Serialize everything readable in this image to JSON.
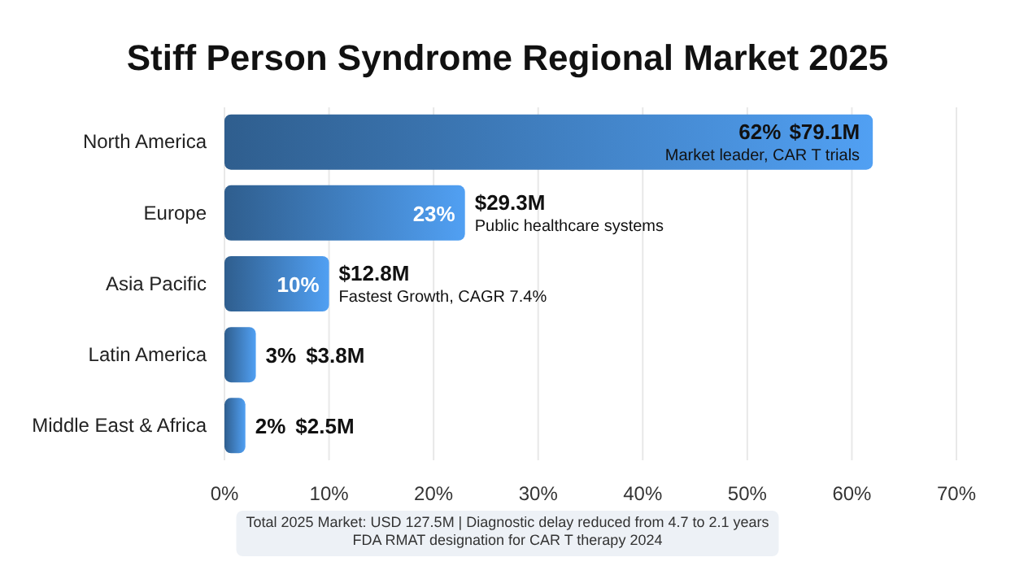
{
  "chart_data": {
    "type": "bar",
    "orientation": "horizontal",
    "title": "Stiff Person Syndrome Regional Market 2025",
    "categories": [
      "North America",
      "Europe",
      "Asia Pacific",
      "Latin America",
      "Middle East & Africa"
    ],
    "values": [
      62,
      23,
      10,
      3,
      2
    ],
    "value_labels": [
      "62%",
      "23%",
      "10%",
      "3%",
      "2%"
    ],
    "color": "#3f7dbd",
    "xlim": [
      0,
      70
    ],
    "xticks": [
      {
        "value": 0,
        "label": "0%"
      },
      {
        "value": 10,
        "label": "10%"
      },
      {
        "value": 20,
        "label": "20%"
      },
      {
        "value": 30,
        "label": "30%"
      },
      {
        "value": 40,
        "label": "40%"
      },
      {
        "value": 50,
        "label": "50%"
      },
      {
        "value": 60,
        "label": "60%"
      },
      {
        "value": 70,
        "label": "70%"
      }
    ],
    "grid": "x",
    "annotations": [
      {
        "text": "$79.1M",
        "x": 62,
        "y": "North America"
      },
      {
        "text": "Market leader, CAR T trials",
        "x": 62,
        "y": "North America"
      },
      {
        "text": "$29.3M",
        "x": 23,
        "y": "Europe"
      },
      {
        "text": "Public healthcare systems",
        "x": 23,
        "y": "Europe"
      },
      {
        "text": "$12.8M",
        "x": 10,
        "y": "Asia Pacific"
      },
      {
        "text": "Fastest Growth, CAGR 7.4%",
        "x": 10,
        "y": "Asia Pacific"
      },
      {
        "text": "$3.8M",
        "x": 3,
        "y": "Latin America"
      },
      {
        "text": "$2.5M",
        "x": 2,
        "y": "Middle East & Africa"
      },
      "Total 2025 Market: USD 127.5M | Diagnostic delay reduced from 4.7 to 2.1 years",
      "FDA RMAT designation for CAR T therapy 2024"
    ]
  }
}
